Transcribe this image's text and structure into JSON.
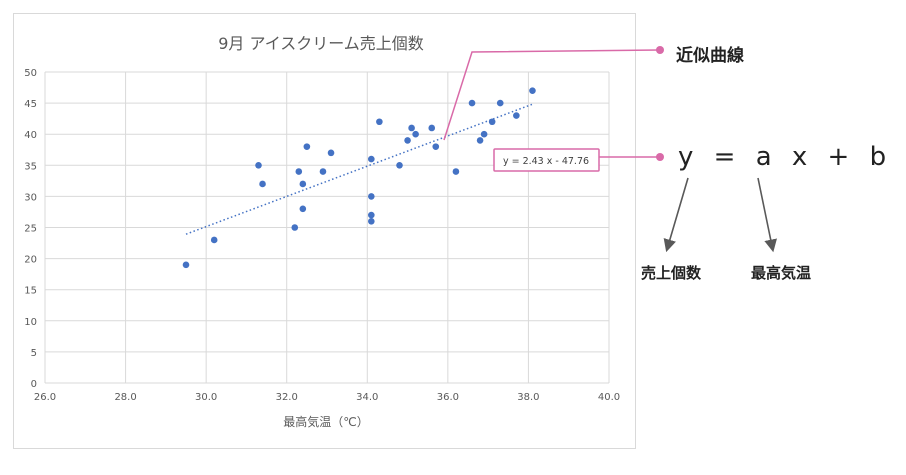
{
  "chart_data": {
    "type": "scatter",
    "title": "9月 アイスクリーム売上個数",
    "xlabel": "最高気温（℃）",
    "ylabel": "",
    "xlim": [
      26.0,
      40.0
    ],
    "ylim": [
      0,
      50
    ],
    "x_ticks": [
      "26.0",
      "28.0",
      "30.0",
      "32.0",
      "34.0",
      "36.0",
      "38.0",
      "40.0"
    ],
    "y_ticks": [
      "0",
      "5",
      "10",
      "15",
      "20",
      "25",
      "30",
      "35",
      "40",
      "45",
      "50"
    ],
    "grid": true,
    "series": [
      {
        "color": "#4472c4",
        "points": [
          [
            29.5,
            19
          ],
          [
            30.2,
            23
          ],
          [
            31.3,
            35
          ],
          [
            31.4,
            32
          ],
          [
            32.2,
            25
          ],
          [
            32.3,
            34
          ],
          [
            32.4,
            32
          ],
          [
            32.4,
            28
          ],
          [
            32.5,
            38
          ],
          [
            32.9,
            34
          ],
          [
            33.1,
            37
          ],
          [
            34.1,
            36
          ],
          [
            34.1,
            30
          ],
          [
            34.1,
            27
          ],
          [
            34.1,
            26
          ],
          [
            34.3,
            42
          ],
          [
            34.8,
            35
          ],
          [
            35.0,
            39
          ],
          [
            35.1,
            41
          ],
          [
            35.2,
            40
          ],
          [
            35.6,
            41
          ],
          [
            35.7,
            38
          ],
          [
            36.2,
            34
          ],
          [
            36.6,
            45
          ],
          [
            36.8,
            39
          ],
          [
            36.9,
            40
          ],
          [
            37.1,
            42
          ],
          [
            37.3,
            45
          ],
          [
            37.7,
            43
          ],
          [
            38.1,
            47
          ]
        ]
      }
    ],
    "trendline": {
      "type": "linear",
      "style": "dotted",
      "color": "#4472c4",
      "x_range": [
        29.5,
        38.1
      ],
      "slope": 2.43,
      "intercept": -47.76,
      "label": "y = 2.43 x - 47.76"
    }
  },
  "annotations": {
    "color": "#d96aa8",
    "trend_label": "近似曲線",
    "formula": "y = a x + b",
    "y_meaning": "売上個数",
    "x_meaning": "最高気温"
  }
}
